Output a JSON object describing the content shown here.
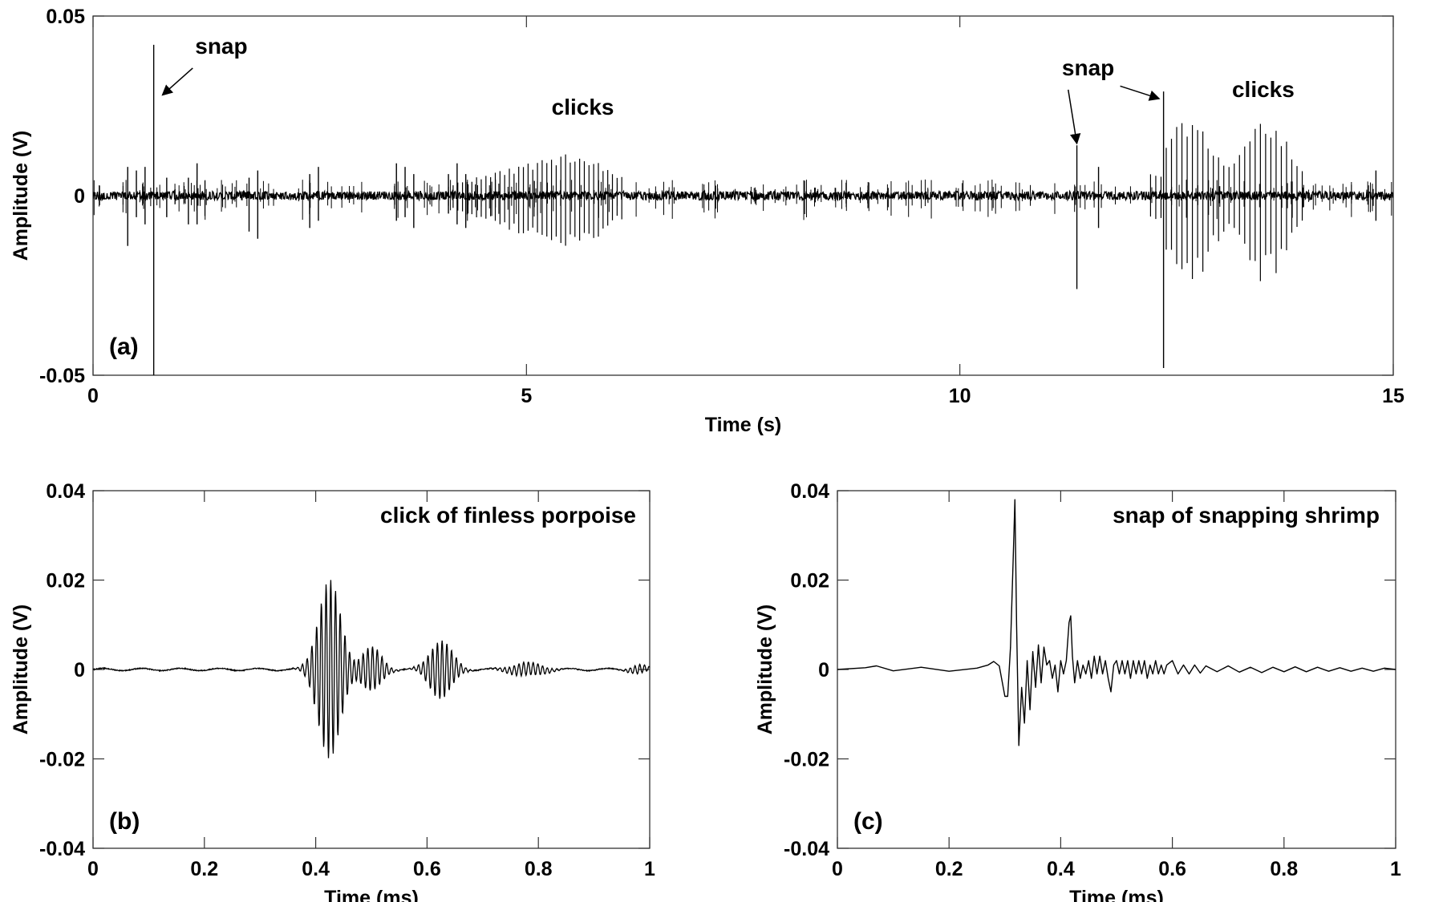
{
  "chart_data": [
    {
      "panel": "(a)",
      "type": "line",
      "xlabel": "Time (s)",
      "ylabel": "Amplitude (V)",
      "xlim": [
        0,
        15
      ],
      "ylim": [
        -0.05,
        0.05
      ],
      "xticks": [
        "0",
        "5",
        "10",
        "15"
      ],
      "yticks": [
        "0.05",
        "0",
        "-0.05"
      ],
      "xtick_values": [
        0,
        5,
        10,
        15
      ],
      "ytick_values": [
        0.05,
        0,
        -0.05
      ],
      "noise_level": 0.0006,
      "pulses": [
        {
          "t": 0.4,
          "up": 0.008,
          "down": -0.014
        },
        {
          "t": 0.5,
          "up": 0.007,
          "down": -0.006
        },
        {
          "t": 0.6,
          "up": 0.008,
          "down": -0.008
        },
        {
          "t": 0.7,
          "up": 0.042,
          "down": -0.05
        },
        {
          "t": 0.85,
          "up": 0.005,
          "down": -0.006
        },
        {
          "t": 1.1,
          "up": 0.005,
          "down": -0.008
        },
        {
          "t": 1.2,
          "up": 0.009,
          "down": -0.008
        },
        {
          "t": 1.8,
          "up": 0.005,
          "down": -0.01
        },
        {
          "t": 1.9,
          "up": 0.007,
          "down": -0.012
        },
        {
          "t": 2.5,
          "up": 0.006,
          "down": -0.009
        },
        {
          "t": 2.6,
          "up": 0.008,
          "down": -0.007
        },
        {
          "t": 3.5,
          "up": 0.009,
          "down": -0.007
        },
        {
          "t": 3.6,
          "up": 0.008,
          "down": -0.006
        },
        {
          "t": 3.7,
          "up": 0.006,
          "down": -0.009
        },
        {
          "t": 4.1,
          "up": 0.006,
          "down": -0.005
        },
        {
          "t": 4.2,
          "up": 0.009,
          "down": -0.008
        },
        {
          "t": 4.3,
          "up": 0.006,
          "down": -0.009
        },
        {
          "t": 11.35,
          "up": 0.014,
          "down": -0.026
        },
        {
          "t": 11.6,
          "up": 0.008,
          "down": -0.009
        },
        {
          "t": 12.35,
          "up": 0.029,
          "down": -0.048
        },
        {
          "t": 14.8,
          "up": 0.007,
          "down": -0.007
        }
      ],
      "click_trains": [
        {
          "start": 4.1,
          "end": 6.1,
          "peak": 0.012,
          "ratio": 1.2,
          "count": 38
        },
        {
          "start": 12.2,
          "end": 13.95,
          "peak": 0.02,
          "ratio": 1.05,
          "count": 30
        }
      ],
      "annotations": [
        {
          "text": "snap",
          "x": 1.48,
          "y": 0.0395,
          "arrow_from": [
            1.15,
            0.0355
          ],
          "arrow_to": [
            0.8,
            0.028
          ]
        },
        {
          "text": "clicks",
          "x": 5.65,
          "y": 0.0225
        },
        {
          "text": "snap",
          "x": 11.48,
          "y": 0.0335,
          "arrow_from": [
            11.25,
            0.0295
          ],
          "arrow_to": [
            11.35,
            0.0145
          ]
        },
        {
          "text": "",
          "x": 0,
          "y": 0,
          "arrow_from": [
            11.85,
            0.0305
          ],
          "arrow_to": [
            12.3,
            0.027
          ]
        },
        {
          "text": "clicks",
          "x": 13.5,
          "y": 0.0275
        }
      ]
    },
    {
      "panel": "(b)",
      "type": "line",
      "title": "click of finless porpoise",
      "xlabel": "Time (ms)",
      "ylabel": "Amplitude (V)",
      "xlim": [
        0,
        1
      ],
      "ylim": [
        -0.04,
        0.04
      ],
      "xticks": [
        "0",
        "0.2",
        "0.4",
        "0.6",
        "0.8",
        "1"
      ],
      "yticks": [
        "0.04",
        "0.02",
        "0",
        "-0.02",
        "-0.04"
      ],
      "xtick_values": [
        0,
        0.2,
        0.4,
        0.6,
        0.8,
        1
      ],
      "ytick_values": [
        0.04,
        0.02,
        0,
        -0.02,
        -0.04
      ],
      "bursts": [
        {
          "center": 0.425,
          "width": 0.028,
          "amplitude": 0.02,
          "period": 0.0085
        },
        {
          "center": 0.5,
          "width": 0.025,
          "amplitude": 0.005,
          "period": 0.0085
        },
        {
          "center": 0.625,
          "width": 0.028,
          "amplitude": 0.0065,
          "period": 0.0085
        },
        {
          "center": 0.78,
          "width": 0.04,
          "amplitude": 0.0015,
          "period": 0.0085
        },
        {
          "center": 0.98,
          "width": 0.02,
          "amplitude": 0.001,
          "period": 0.0085
        }
      ]
    },
    {
      "panel": "(c)",
      "type": "line",
      "title": "snap of snapping shrimp",
      "xlabel": "Time (ms)",
      "ylabel": "Amplitude (V)",
      "xlim": [
        0,
        1
      ],
      "ylim": [
        -0.04,
        0.04
      ],
      "xticks": [
        "0",
        "0.2",
        "0.4",
        "0.6",
        "0.8",
        "1"
      ],
      "yticks": [
        "0.04",
        "0.02",
        "0",
        "-0.02",
        "-0.04"
      ],
      "xtick_values": [
        0,
        0.2,
        0.4,
        0.6,
        0.8,
        1
      ],
      "ytick_values": [
        0.04,
        0.02,
        0,
        -0.02,
        -0.04
      ],
      "points": [
        [
          0,
          0
        ],
        [
          0.05,
          0.0004
        ],
        [
          0.07,
          0.0008
        ],
        [
          0.1,
          -0.0003
        ],
        [
          0.15,
          0.0005
        ],
        [
          0.2,
          -0.0004
        ],
        [
          0.25,
          0.0003
        ],
        [
          0.27,
          0.001
        ],
        [
          0.28,
          0.0018
        ],
        [
          0.29,
          0.0008
        ],
        [
          0.3,
          -0.006
        ],
        [
          0.305,
          -0.006
        ],
        [
          0.31,
          0.005
        ],
        [
          0.315,
          0.025
        ],
        [
          0.318,
          0.038
        ],
        [
          0.321,
          0.01
        ],
        [
          0.325,
          -0.017
        ],
        [
          0.33,
          -0.004
        ],
        [
          0.335,
          -0.012
        ],
        [
          0.34,
          0.002
        ],
        [
          0.345,
          -0.009
        ],
        [
          0.35,
          0.004
        ],
        [
          0.355,
          -0.004
        ],
        [
          0.36,
          0.0055
        ],
        [
          0.365,
          -0.003
        ],
        [
          0.37,
          0.005
        ],
        [
          0.375,
          0.001
        ],
        [
          0.38,
          0.002
        ],
        [
          0.385,
          -0.002
        ],
        [
          0.39,
          0.001
        ],
        [
          0.395,
          -0.005
        ],
        [
          0.4,
          0.002
        ],
        [
          0.405,
          -0.001
        ],
        [
          0.41,
          0.002
        ],
        [
          0.415,
          0.0105
        ],
        [
          0.418,
          0.012
        ],
        [
          0.421,
          0.003
        ],
        [
          0.425,
          -0.003
        ],
        [
          0.43,
          0.002
        ],
        [
          0.435,
          -0.002
        ],
        [
          0.44,
          0.001
        ],
        [
          0.445,
          -0.001
        ],
        [
          0.45,
          0.002
        ],
        [
          0.455,
          -0.002
        ],
        [
          0.46,
          0.003
        ],
        [
          0.465,
          -0.001
        ],
        [
          0.47,
          0.003
        ],
        [
          0.475,
          -0.001
        ],
        [
          0.48,
          0.002
        ],
        [
          0.485,
          -0.002
        ],
        [
          0.49,
          -0.005
        ],
        [
          0.495,
          0.001
        ],
        [
          0.5,
          0.002
        ],
        [
          0.505,
          -0.001
        ],
        [
          0.51,
          0.002
        ],
        [
          0.515,
          -0.001
        ],
        [
          0.52,
          0.002
        ],
        [
          0.525,
          -0.002
        ],
        [
          0.53,
          0.002
        ],
        [
          0.535,
          -0.001
        ],
        [
          0.54,
          0.002
        ],
        [
          0.545,
          -0.001
        ],
        [
          0.55,
          0.002
        ],
        [
          0.555,
          -0.002
        ],
        [
          0.56,
          0.001
        ],
        [
          0.565,
          -0.001
        ],
        [
          0.57,
          0.002
        ],
        [
          0.575,
          -0.001
        ],
        [
          0.58,
          0.001
        ],
        [
          0.585,
          -0.001
        ],
        [
          0.59,
          0.001
        ],
        [
          0.6,
          0.002
        ],
        [
          0.61,
          -0.001
        ],
        [
          0.62,
          0.001
        ],
        [
          0.63,
          -0.001
        ],
        [
          0.64,
          0.001
        ],
        [
          0.65,
          -0.0008
        ],
        [
          0.66,
          0.0008
        ],
        [
          0.68,
          -0.0005
        ],
        [
          0.7,
          0.0008
        ],
        [
          0.72,
          -0.0006
        ],
        [
          0.74,
          0.0005
        ],
        [
          0.76,
          -0.0007
        ],
        [
          0.78,
          0.0005
        ],
        [
          0.8,
          -0.0005
        ],
        [
          0.82,
          0.0006
        ],
        [
          0.84,
          -0.0005
        ],
        [
          0.86,
          0.0005
        ],
        [
          0.88,
          -0.0004
        ],
        [
          0.9,
          0.0004
        ],
        [
          0.92,
          -0.0004
        ],
        [
          0.94,
          0.0003
        ],
        [
          0.96,
          -0.0004
        ],
        [
          0.98,
          0.0003
        ],
        [
          1,
          0
        ]
      ]
    }
  ]
}
